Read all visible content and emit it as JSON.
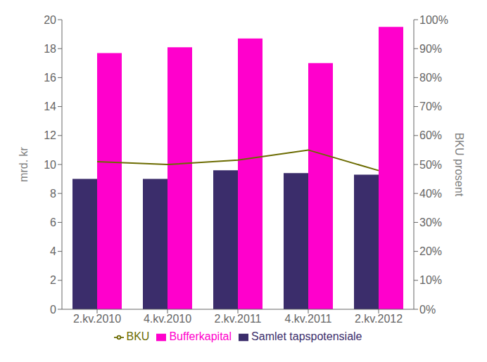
{
  "chart_data": {
    "type": "bar",
    "categories": [
      "2.kv.2010",
      "4.kv.2010",
      "2.kv.2011",
      "4.kv.2011",
      "2.kv.2012"
    ],
    "series": [
      {
        "name": "Samlet tapspotensiale",
        "type": "bar",
        "color": "#3B2D6B",
        "values": [
          9.0,
          9.0,
          9.6,
          9.4,
          9.3
        ]
      },
      {
        "name": "Bufferkapital",
        "type": "bar",
        "color": "#FF00CC",
        "values": [
          17.7,
          18.1,
          18.7,
          17.0,
          19.5
        ]
      },
      {
        "name": "BKU",
        "type": "line",
        "axis": "y2",
        "color": "#6B6B00",
        "values": [
          51.0,
          50.0,
          51.5,
          55.0,
          47.9
        ]
      }
    ],
    "ylabel": "mrd. kr",
    "y2label": "BKU prosent",
    "ylim": [
      0,
      20
    ],
    "yticks": [
      0,
      2,
      4,
      6,
      8,
      10,
      12,
      14,
      16,
      18,
      20
    ],
    "y2lim": [
      0,
      100
    ],
    "y2ticks": [
      {
        "value": 0,
        "label": "0%"
      },
      {
        "value": 10,
        "label": "10%"
      },
      {
        "value": 20,
        "label": "20%"
      },
      {
        "value": 30,
        "label": "30%"
      },
      {
        "value": 40,
        "label": "40%"
      },
      {
        "value": 50,
        "label": "50%"
      },
      {
        "value": 60,
        "label": "60%"
      },
      {
        "value": 70,
        "label": "70%"
      },
      {
        "value": 80,
        "label": "80%"
      },
      {
        "value": 90,
        "label": "90%"
      },
      {
        "value": 100,
        "label": "100%"
      }
    ],
    "legend": "bottom",
    "grid": false
  }
}
